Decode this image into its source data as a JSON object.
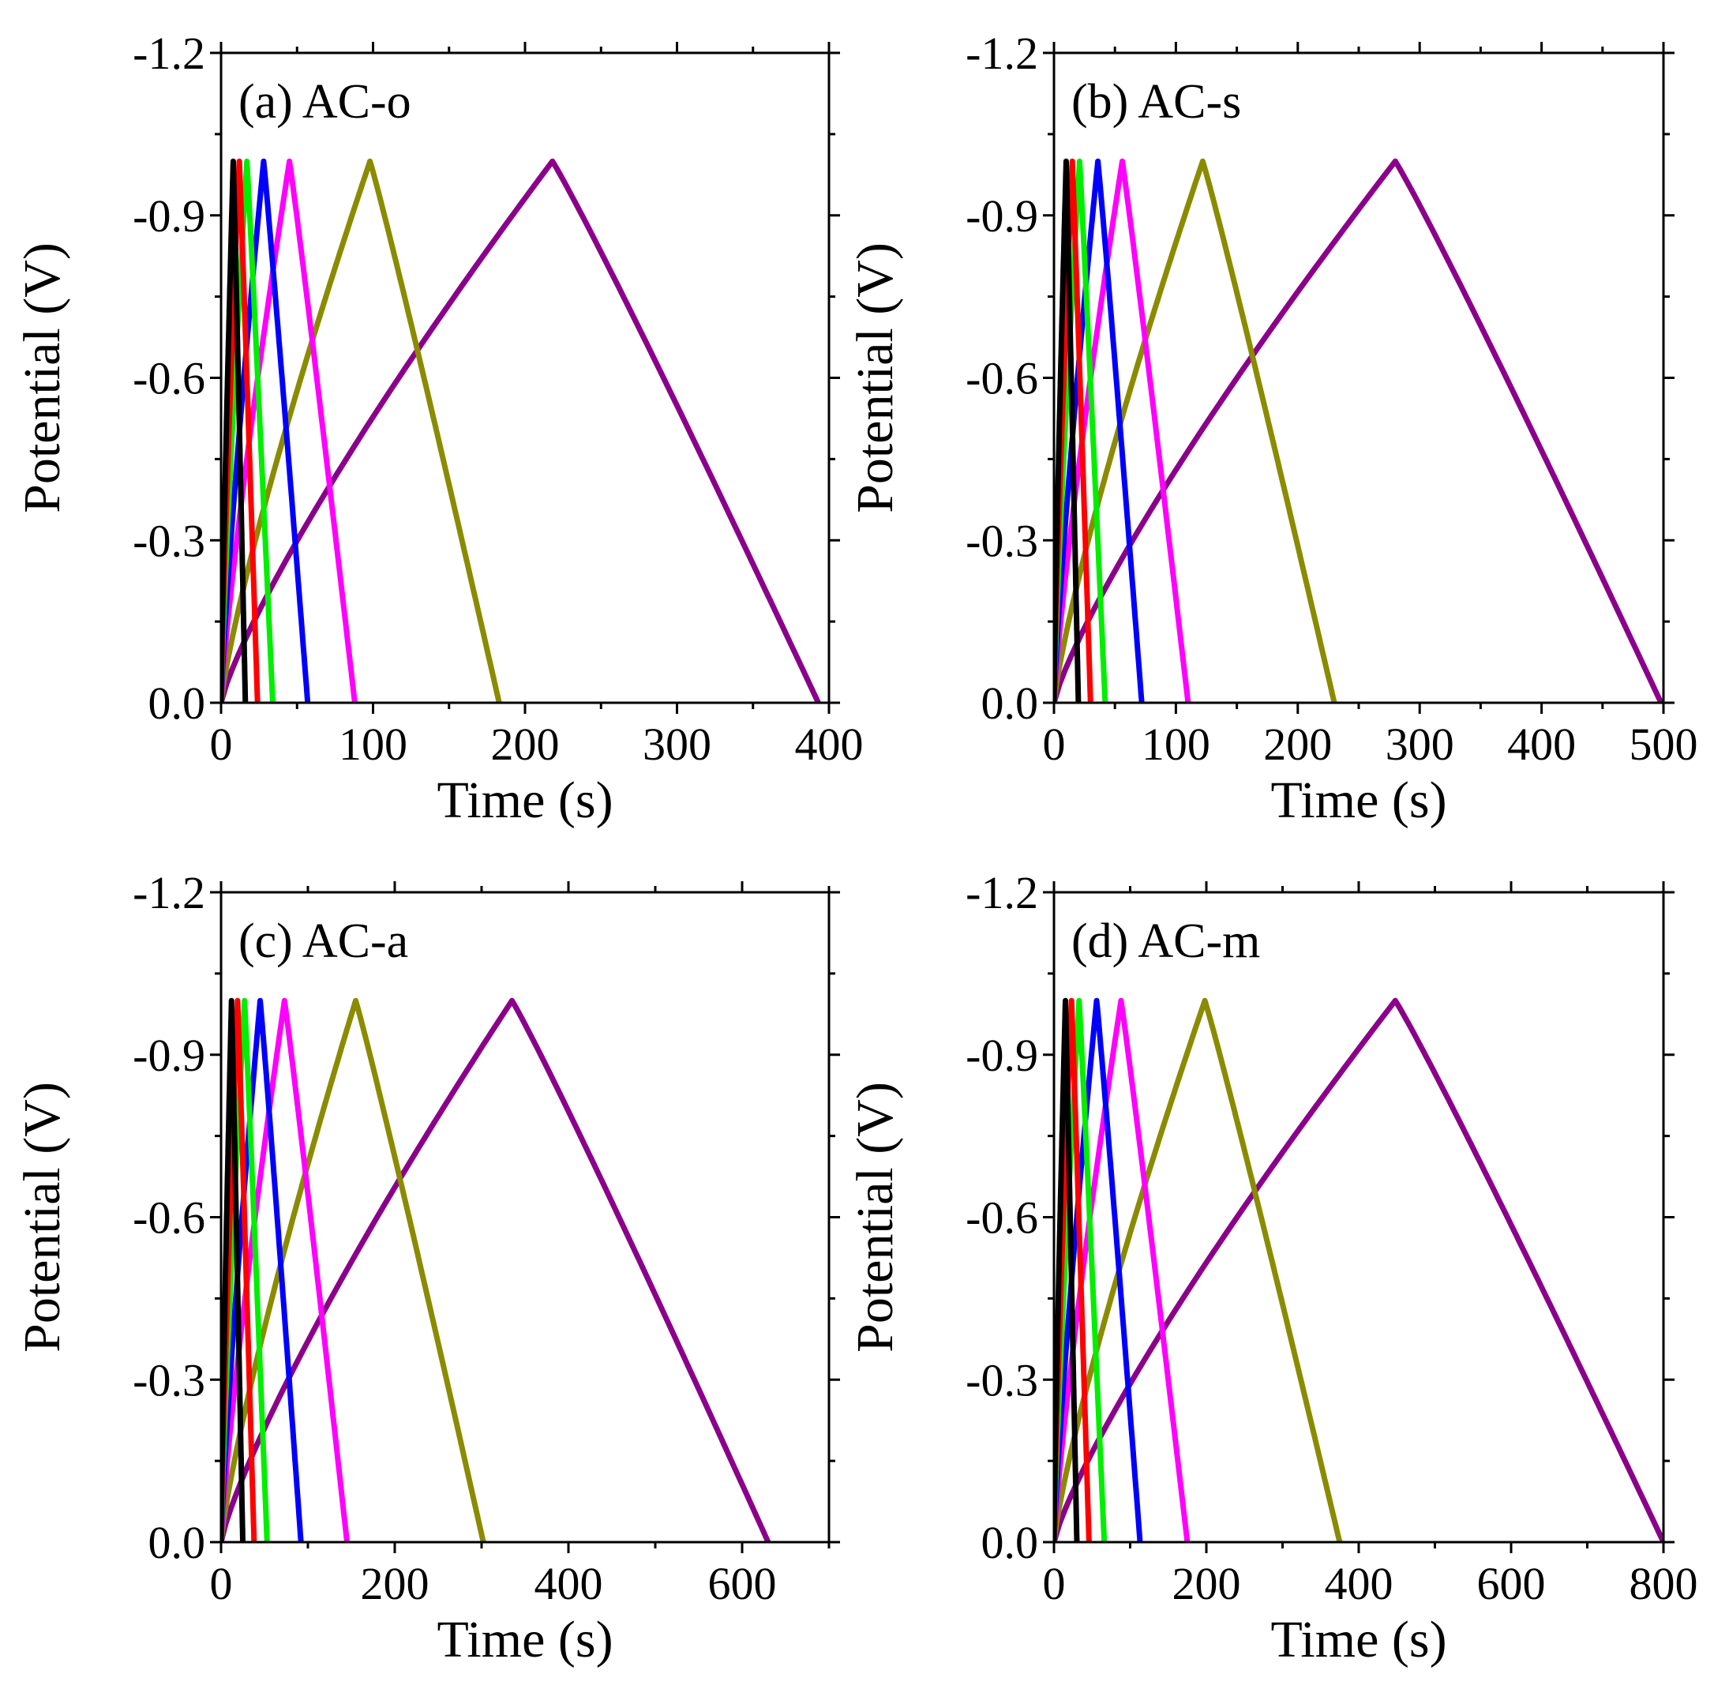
{
  "chart_data": [
    {
      "type": "line",
      "panel_label": "(a) AC-o",
      "xlabel": "Time (s)",
      "ylabel": "Potential (V)",
      "xlim": [
        0,
        400
      ],
      "ylim": [
        0.0,
        -1.2
      ],
      "xticks": [
        0,
        100,
        200,
        300,
        400
      ],
      "yticks": [
        -1.2,
        -0.9,
        -0.6,
        -0.3,
        0.0
      ],
      "xtick_labels": [
        "0",
        "100",
        "200",
        "300",
        "400"
      ],
      "ytick_labels": [
        "-1.2",
        "-0.9",
        "-0.6",
        "-0.3",
        "0.0"
      ],
      "grid": false,
      "legend": "none",
      "series": [
        {
          "color": "#8b008b",
          "peak_time": 218,
          "end_time": 393,
          "peak_potential": -1.0
        },
        {
          "color": "#8b8b00",
          "peak_time": 98,
          "end_time": 183,
          "peak_potential": -1.0
        },
        {
          "color": "#ff00ff",
          "peak_time": 45,
          "end_time": 88,
          "peak_potential": -1.0
        },
        {
          "color": "#0000ff",
          "peak_time": 28,
          "end_time": 57,
          "peak_potential": -1.0
        },
        {
          "color": "#00ee00",
          "peak_time": 17,
          "end_time": 34,
          "peak_potential": -1.0
        },
        {
          "color": "#ff0000",
          "peak_time": 12,
          "end_time": 24,
          "peak_potential": -1.0
        },
        {
          "color": "#000000",
          "peak_time": 8,
          "end_time": 16,
          "peak_potential": -1.0
        }
      ]
    },
    {
      "type": "line",
      "panel_label": "(b) AC-s",
      "xlabel": "Time (s)",
      "ylabel": "Potential (V)",
      "xlim": [
        0,
        500
      ],
      "ylim": [
        0.0,
        -1.2
      ],
      "xticks": [
        0,
        100,
        200,
        300,
        400,
        500
      ],
      "yticks": [
        -1.2,
        -0.9,
        -0.6,
        -0.3,
        0.0
      ],
      "xtick_labels": [
        "0",
        "100",
        "200",
        "300",
        "400",
        "500"
      ],
      "ytick_labels": [
        "-1.2",
        "-0.9",
        "-0.6",
        "-0.3",
        "0.0"
      ],
      "grid": false,
      "legend": "none",
      "series": [
        {
          "color": "#8b008b",
          "peak_time": 280,
          "end_time": 498,
          "peak_potential": -1.0
        },
        {
          "color": "#8b8b00",
          "peak_time": 122,
          "end_time": 230,
          "peak_potential": -1.0
        },
        {
          "color": "#ff00ff",
          "peak_time": 56,
          "end_time": 110,
          "peak_potential": -1.0
        },
        {
          "color": "#0000ff",
          "peak_time": 36,
          "end_time": 72,
          "peak_potential": -1.0
        },
        {
          "color": "#00ee00",
          "peak_time": 21,
          "end_time": 42,
          "peak_potential": -1.0
        },
        {
          "color": "#ff0000",
          "peak_time": 15,
          "end_time": 30,
          "peak_potential": -1.0
        },
        {
          "color": "#000000",
          "peak_time": 10,
          "end_time": 20,
          "peak_potential": -1.0
        }
      ]
    },
    {
      "type": "line",
      "panel_label": "(c) AC-a",
      "xlabel": "Time (s)",
      "ylabel": "Potential (V)",
      "xlim": [
        0,
        700
      ],
      "ylim": [
        0.0,
        -1.2
      ],
      "xticks": [
        0,
        200,
        400,
        600
      ],
      "yticks": [
        -1.2,
        -0.9,
        -0.6,
        -0.3,
        0.0
      ],
      "xtick_labels": [
        "0",
        "200",
        "400",
        "600"
      ],
      "ytick_labels": [
        "-1.2",
        "-0.9",
        "-0.6",
        "-0.3",
        "0.0"
      ],
      "grid": false,
      "legend": "none",
      "series": [
        {
          "color": "#8b008b",
          "peak_time": 335,
          "end_time": 630,
          "peak_potential": -1.0
        },
        {
          "color": "#8b8b00",
          "peak_time": 155,
          "end_time": 302,
          "peak_potential": -1.0
        },
        {
          "color": "#ff00ff",
          "peak_time": 73,
          "end_time": 145,
          "peak_potential": -1.0
        },
        {
          "color": "#0000ff",
          "peak_time": 45,
          "end_time": 92,
          "peak_potential": -1.0
        },
        {
          "color": "#00ee00",
          "peak_time": 27,
          "end_time": 53,
          "peak_potential": -1.0
        },
        {
          "color": "#ff0000",
          "peak_time": 19,
          "end_time": 38,
          "peak_potential": -1.0
        },
        {
          "color": "#000000",
          "peak_time": 12,
          "end_time": 25,
          "peak_potential": -1.0
        }
      ]
    },
    {
      "type": "line",
      "panel_label": "(d) AC-m",
      "xlabel": "Time (s)",
      "ylabel": "Potential (V)",
      "xlim": [
        0,
        800
      ],
      "ylim": [
        0.0,
        -1.2
      ],
      "xticks": [
        0,
        200,
        400,
        600,
        800
      ],
      "yticks": [
        -1.2,
        -0.9,
        -0.6,
        -0.3,
        0.0
      ],
      "xtick_labels": [
        "0",
        "200",
        "400",
        "600",
        "800"
      ],
      "ytick_labels": [
        "-1.2",
        "-0.9",
        "-0.6",
        "-0.3",
        "0.0"
      ],
      "grid": false,
      "legend": "none",
      "series": [
        {
          "color": "#8b008b",
          "peak_time": 448,
          "end_time": 800,
          "peak_potential": -1.0
        },
        {
          "color": "#8b8b00",
          "peak_time": 198,
          "end_time": 375,
          "peak_potential": -1.0
        },
        {
          "color": "#ff00ff",
          "peak_time": 88,
          "end_time": 175,
          "peak_potential": -1.0
        },
        {
          "color": "#0000ff",
          "peak_time": 56,
          "end_time": 113,
          "peak_potential": -1.0
        },
        {
          "color": "#00ee00",
          "peak_time": 33,
          "end_time": 66,
          "peak_potential": -1.0
        },
        {
          "color": "#ff0000",
          "peak_time": 23,
          "end_time": 46,
          "peak_potential": -1.0
        },
        {
          "color": "#000000",
          "peak_time": 15,
          "end_time": 30,
          "peak_potential": -1.0
        }
      ]
    }
  ]
}
